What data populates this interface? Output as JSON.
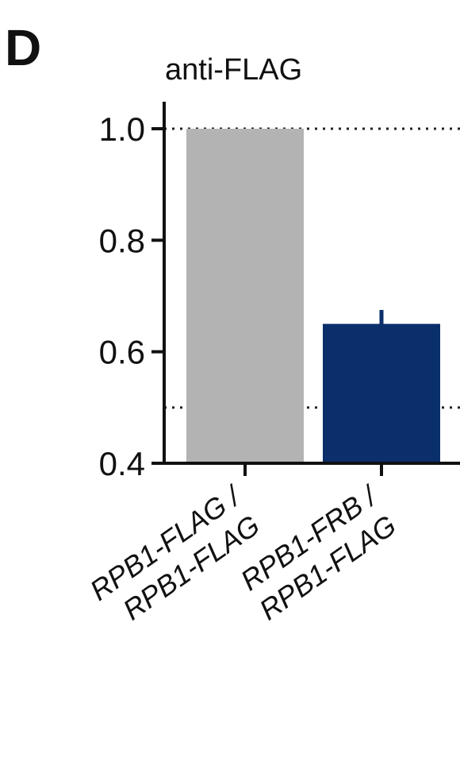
{
  "panel_label": "D",
  "chart_data": {
    "type": "bar",
    "title": "anti-FLAG",
    "xlabel": "",
    "ylabel": "",
    "ylim": [
      0.4,
      1.0
    ],
    "yticks": [
      {
        "value": 1.0,
        "label": "1.0"
      },
      {
        "value": 0.8,
        "label": "0.8"
      },
      {
        "value": 0.6,
        "label": "0.6"
      },
      {
        "value": 0.4,
        "label": "0.4"
      }
    ],
    "categories": [
      {
        "line1": "RPB1-FLAG /",
        "line2": "RPB1-FLAG"
      },
      {
        "line1": "RPB1-FRB /",
        "line2": "RPB1-FLAG"
      }
    ],
    "values": [
      1.0,
      0.65
    ],
    "error_upper": [
      0.0,
      0.675
    ],
    "bar_colors": [
      "#b3b3b3",
      "#0b2f6b"
    ],
    "reference_lines": [
      1.0,
      0.5
    ],
    "grid": false
  }
}
